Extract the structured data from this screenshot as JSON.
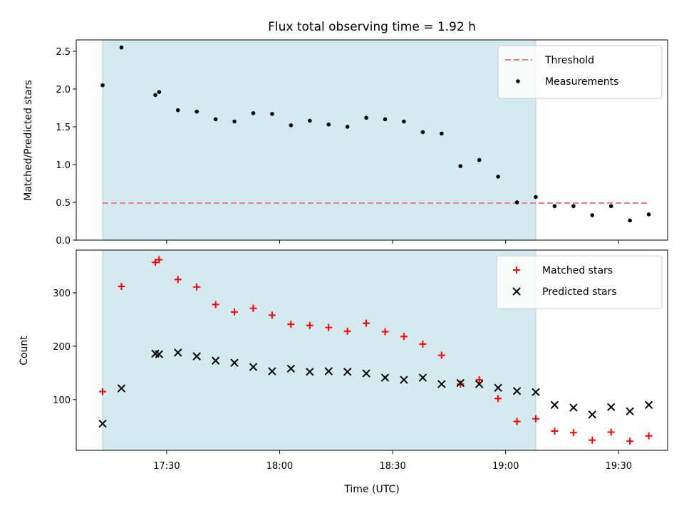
{
  "chart_data": [
    {
      "type": "scatter",
      "title": "Flux total observing time = 1.92 h",
      "xlabel": "",
      "ylabel": "Matched/Predicted stars",
      "x_unit": "time (UTC)",
      "xlim": [
        "17:06",
        "19:43"
      ],
      "ylim": [
        0,
        2.65
      ],
      "yticks": [
        0.0,
        0.5,
        1.0,
        1.5,
        2.0,
        2.5
      ],
      "ytick_labels": [
        "0.0",
        "0.5",
        "1.0",
        "1.5",
        "2.0",
        "2.5"
      ],
      "shaded_span": {
        "from": "17:13",
        "to": "19:08",
        "color": "#d4eaf0"
      },
      "threshold": {
        "name": "Threshold",
        "y": 0.49,
        "from": "17:13",
        "to": "19:38",
        "color": "#f08080",
        "style": "dashed"
      },
      "legend_position": "top-right",
      "series": [
        {
          "name": "Measurements",
          "marker": "dot",
          "color": "#000000",
          "points": [
            {
              "x": "17:13",
              "y": 2.05
            },
            {
              "x": "17:18",
              "y": 2.55
            },
            {
              "x": "17:27",
              "y": 1.92
            },
            {
              "x": "17:28",
              "y": 1.96
            },
            {
              "x": "17:33",
              "y": 1.72
            },
            {
              "x": "17:38",
              "y": 1.7
            },
            {
              "x": "17:43",
              "y": 1.6
            },
            {
              "x": "17:48",
              "y": 1.57
            },
            {
              "x": "17:53",
              "y": 1.68
            },
            {
              "x": "17:58",
              "y": 1.67
            },
            {
              "x": "18:03",
              "y": 1.52
            },
            {
              "x": "18:08",
              "y": 1.58
            },
            {
              "x": "18:13",
              "y": 1.53
            },
            {
              "x": "18:18",
              "y": 1.5
            },
            {
              "x": "18:23",
              "y": 1.62
            },
            {
              "x": "18:28",
              "y": 1.6
            },
            {
              "x": "18:33",
              "y": 1.57
            },
            {
              "x": "18:38",
              "y": 1.43
            },
            {
              "x": "18:43",
              "y": 1.41
            },
            {
              "x": "18:48",
              "y": 0.98
            },
            {
              "x": "18:53",
              "y": 1.06
            },
            {
              "x": "18:58",
              "y": 0.84
            },
            {
              "x": "19:03",
              "y": 0.5
            },
            {
              "x": "19:08",
              "y": 0.57
            },
            {
              "x": "19:13",
              "y": 0.45
            },
            {
              "x": "19:18",
              "y": 0.45
            },
            {
              "x": "19:23",
              "y": 0.33
            },
            {
              "x": "19:28",
              "y": 0.45
            },
            {
              "x": "19:33",
              "y": 0.26
            },
            {
              "x": "19:38",
              "y": 0.34
            }
          ]
        }
      ]
    },
    {
      "type": "scatter",
      "title": "",
      "xlabel": "Time (UTC)",
      "ylabel": "Count",
      "xlim": [
        "17:06",
        "19:43"
      ],
      "ylim": [
        5,
        380
      ],
      "yticks": [
        100,
        200,
        300
      ],
      "ytick_labels": [
        "100",
        "200",
        "300"
      ],
      "xticks": [
        "17:30",
        "18:00",
        "18:30",
        "19:00",
        "19:30"
      ],
      "xtick_labels": [
        "17:30",
        "18:00",
        "18:30",
        "19:00",
        "19:30"
      ],
      "shaded_span": {
        "from": "17:13",
        "to": "19:08",
        "color": "#d4eaf0"
      },
      "legend_position": "top-right",
      "series": [
        {
          "name": "Matched stars",
          "marker": "plus",
          "color": "#ff0000",
          "points": [
            {
              "x": "17:13",
              "y": 115
            },
            {
              "x": "17:18",
              "y": 312
            },
            {
              "x": "17:27",
              "y": 357
            },
            {
              "x": "17:28",
              "y": 362
            },
            {
              "x": "17:33",
              "y": 325
            },
            {
              "x": "17:38",
              "y": 311
            },
            {
              "x": "17:43",
              "y": 278
            },
            {
              "x": "17:48",
              "y": 264
            },
            {
              "x": "17:53",
              "y": 271
            },
            {
              "x": "17:58",
              "y": 258
            },
            {
              "x": "18:03",
              "y": 241
            },
            {
              "x": "18:08",
              "y": 239
            },
            {
              "x": "18:13",
              "y": 235
            },
            {
              "x": "18:18",
              "y": 228
            },
            {
              "x": "18:23",
              "y": 243
            },
            {
              "x": "18:28",
              "y": 227
            },
            {
              "x": "18:33",
              "y": 218
            },
            {
              "x": "18:38",
              "y": 204
            },
            {
              "x": "18:43",
              "y": 183
            },
            {
              "x": "18:48",
              "y": 129
            },
            {
              "x": "18:53",
              "y": 137
            },
            {
              "x": "18:58",
              "y": 102
            },
            {
              "x": "19:03",
              "y": 59
            },
            {
              "x": "19:08",
              "y": 64
            },
            {
              "x": "19:13",
              "y": 41
            },
            {
              "x": "19:18",
              "y": 38
            },
            {
              "x": "19:23",
              "y": 24
            },
            {
              "x": "19:28",
              "y": 39
            },
            {
              "x": "19:33",
              "y": 22
            },
            {
              "x": "19:38",
              "y": 32
            }
          ]
        },
        {
          "name": "Predicted stars",
          "marker": "x",
          "color": "#000000",
          "points": [
            {
              "x": "17:13",
              "y": 55
            },
            {
              "x": "17:18",
              "y": 121
            },
            {
              "x": "17:27",
              "y": 186
            },
            {
              "x": "17:28",
              "y": 185
            },
            {
              "x": "17:33",
              "y": 188
            },
            {
              "x": "17:38",
              "y": 181
            },
            {
              "x": "17:43",
              "y": 173
            },
            {
              "x": "17:48",
              "y": 169
            },
            {
              "x": "17:53",
              "y": 161
            },
            {
              "x": "17:58",
              "y": 153
            },
            {
              "x": "18:03",
              "y": 158
            },
            {
              "x": "18:08",
              "y": 152
            },
            {
              "x": "18:13",
              "y": 153
            },
            {
              "x": "18:18",
              "y": 152
            },
            {
              "x": "18:23",
              "y": 149
            },
            {
              "x": "18:28",
              "y": 141
            },
            {
              "x": "18:33",
              "y": 137
            },
            {
              "x": "18:38",
              "y": 141
            },
            {
              "x": "18:43",
              "y": 129
            },
            {
              "x": "18:48",
              "y": 131
            },
            {
              "x": "18:53",
              "y": 129
            },
            {
              "x": "18:58",
              "y": 122
            },
            {
              "x": "19:03",
              "y": 116
            },
            {
              "x": "19:08",
              "y": 114
            },
            {
              "x": "19:13",
              "y": 90
            },
            {
              "x": "19:18",
              "y": 85
            },
            {
              "x": "19:23",
              "y": 72
            },
            {
              "x": "19:28",
              "y": 86
            },
            {
              "x": "19:33",
              "y": 78
            },
            {
              "x": "19:38",
              "y": 90
            }
          ]
        }
      ]
    }
  ]
}
